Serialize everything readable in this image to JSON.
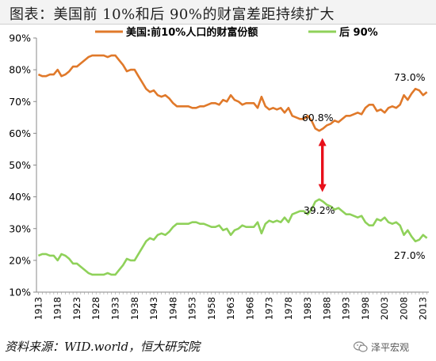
{
  "title": "图表：美国前 10%和后 90%的财富差距持续扩大",
  "source": "资料来源：WID.world，恒大研究院",
  "watermark": {
    "text": "泽平宏观",
    "icon": "wechat-icon"
  },
  "colors": {
    "top10": "#E0792A",
    "bottom90": "#8FD15A",
    "arrow": "#E8101A"
  },
  "chart_data": {
    "type": "line",
    "ylim": [
      0.1,
      0.9
    ],
    "yticks": [
      "10%",
      "20%",
      "30%",
      "40%",
      "50%",
      "60%",
      "70%",
      "80%",
      "90%"
    ],
    "xrange": [
      1913,
      2014
    ],
    "xticks": [
      "1913",
      "1918",
      "1923",
      "1928",
      "1933",
      "1938",
      "1943",
      "1948",
      "1953",
      "1958",
      "1963",
      "1968",
      "1973",
      "1978",
      "1983",
      "1988",
      "1993",
      "1998",
      "2003",
      "2008",
      "2013"
    ],
    "legend_position": "top",
    "grid": false,
    "series": [
      {
        "name": "美国:前10%人口的财富份额",
        "points": [
          [
            1913,
            0.785
          ],
          [
            1914,
            0.78
          ],
          [
            1915,
            0.78
          ],
          [
            1916,
            0.785
          ],
          [
            1917,
            0.785
          ],
          [
            1918,
            0.8
          ],
          [
            1919,
            0.78
          ],
          [
            1920,
            0.785
          ],
          [
            1921,
            0.795
          ],
          [
            1922,
            0.81
          ],
          [
            1923,
            0.81
          ],
          [
            1924,
            0.82
          ],
          [
            1925,
            0.83
          ],
          [
            1926,
            0.84
          ],
          [
            1927,
            0.845
          ],
          [
            1928,
            0.845
          ],
          [
            1929,
            0.845
          ],
          [
            1930,
            0.845
          ],
          [
            1931,
            0.84
          ],
          [
            1932,
            0.845
          ],
          [
            1933,
            0.845
          ],
          [
            1934,
            0.83
          ],
          [
            1935,
            0.815
          ],
          [
            1936,
            0.795
          ],
          [
            1937,
            0.8
          ],
          [
            1938,
            0.8
          ],
          [
            1939,
            0.78
          ],
          [
            1940,
            0.76
          ],
          [
            1941,
            0.74
          ],
          [
            1942,
            0.73
          ],
          [
            1943,
            0.735
          ],
          [
            1944,
            0.72
          ],
          [
            1945,
            0.715
          ],
          [
            1946,
            0.72
          ],
          [
            1947,
            0.71
          ],
          [
            1948,
            0.695
          ],
          [
            1949,
            0.685
          ],
          [
            1950,
            0.685
          ],
          [
            1951,
            0.685
          ],
          [
            1952,
            0.685
          ],
          [
            1953,
            0.68
          ],
          [
            1954,
            0.68
          ],
          [
            1955,
            0.685
          ],
          [
            1956,
            0.685
          ],
          [
            1957,
            0.69
          ],
          [
            1958,
            0.695
          ],
          [
            1959,
            0.695
          ],
          [
            1960,
            0.69
          ],
          [
            1961,
            0.705
          ],
          [
            1962,
            0.7
          ],
          [
            1963,
            0.72
          ],
          [
            1964,
            0.705
          ],
          [
            1965,
            0.7
          ],
          [
            1966,
            0.69
          ],
          [
            1967,
            0.695
          ],
          [
            1968,
            0.695
          ],
          [
            1969,
            0.695
          ],
          [
            1970,
            0.68
          ],
          [
            1971,
            0.715
          ],
          [
            1972,
            0.685
          ],
          [
            1973,
            0.675
          ],
          [
            1974,
            0.68
          ],
          [
            1975,
            0.675
          ],
          [
            1976,
            0.68
          ],
          [
            1977,
            0.665
          ],
          [
            1978,
            0.68
          ],
          [
            1979,
            0.655
          ],
          [
            1980,
            0.65
          ],
          [
            1981,
            0.645
          ],
          [
            1982,
            0.645
          ],
          [
            1983,
            0.655
          ],
          [
            1984,
            0.64
          ],
          [
            1985,
            0.615
          ],
          [
            1986,
            0.608
          ],
          [
            1987,
            0.615
          ],
          [
            1988,
            0.625
          ],
          [
            1989,
            0.63
          ],
          [
            1990,
            0.64
          ],
          [
            1991,
            0.635
          ],
          [
            1992,
            0.645
          ],
          [
            1993,
            0.655
          ],
          [
            1994,
            0.655
          ],
          [
            1995,
            0.66
          ],
          [
            1996,
            0.665
          ],
          [
            1997,
            0.66
          ],
          [
            1998,
            0.68
          ],
          [
            1999,
            0.69
          ],
          [
            2000,
            0.69
          ],
          [
            2001,
            0.67
          ],
          [
            2002,
            0.675
          ],
          [
            2003,
            0.665
          ],
          [
            2004,
            0.68
          ],
          [
            2005,
            0.685
          ],
          [
            2006,
            0.68
          ],
          [
            2007,
            0.69
          ],
          [
            2008,
            0.72
          ],
          [
            2009,
            0.705
          ],
          [
            2010,
            0.725
          ],
          [
            2011,
            0.74
          ],
          [
            2012,
            0.735
          ],
          [
            2013,
            0.72
          ],
          [
            2014,
            0.73
          ]
        ],
        "annotations": [
          {
            "x": 1986,
            "y": 0.608,
            "label": "60.8%"
          },
          {
            "x": 2014,
            "y": 0.73,
            "label": "73.0%"
          }
        ]
      },
      {
        "name": "后 90%",
        "points": [
          [
            1913,
            0.215
          ],
          [
            1914,
            0.22
          ],
          [
            1915,
            0.22
          ],
          [
            1916,
            0.215
          ],
          [
            1917,
            0.215
          ],
          [
            1918,
            0.2
          ],
          [
            1919,
            0.22
          ],
          [
            1920,
            0.215
          ],
          [
            1921,
            0.205
          ],
          [
            1922,
            0.19
          ],
          [
            1923,
            0.19
          ],
          [
            1924,
            0.18
          ],
          [
            1925,
            0.17
          ],
          [
            1926,
            0.16
          ],
          [
            1927,
            0.155
          ],
          [
            1928,
            0.155
          ],
          [
            1929,
            0.155
          ],
          [
            1930,
            0.155
          ],
          [
            1931,
            0.16
          ],
          [
            1932,
            0.155
          ],
          [
            1933,
            0.155
          ],
          [
            1934,
            0.17
          ],
          [
            1935,
            0.185
          ],
          [
            1936,
            0.205
          ],
          [
            1937,
            0.2
          ],
          [
            1938,
            0.2
          ],
          [
            1939,
            0.22
          ],
          [
            1940,
            0.24
          ],
          [
            1941,
            0.26
          ],
          [
            1942,
            0.27
          ],
          [
            1943,
            0.265
          ],
          [
            1944,
            0.28
          ],
          [
            1945,
            0.285
          ],
          [
            1946,
            0.28
          ],
          [
            1947,
            0.29
          ],
          [
            1948,
            0.305
          ],
          [
            1949,
            0.315
          ],
          [
            1950,
            0.315
          ],
          [
            1951,
            0.315
          ],
          [
            1952,
            0.315
          ],
          [
            1953,
            0.32
          ],
          [
            1954,
            0.32
          ],
          [
            1955,
            0.315
          ],
          [
            1956,
            0.315
          ],
          [
            1957,
            0.31
          ],
          [
            1958,
            0.305
          ],
          [
            1959,
            0.305
          ],
          [
            1960,
            0.31
          ],
          [
            1961,
            0.295
          ],
          [
            1962,
            0.3
          ],
          [
            1963,
            0.28
          ],
          [
            1964,
            0.295
          ],
          [
            1965,
            0.3
          ],
          [
            1966,
            0.31
          ],
          [
            1967,
            0.305
          ],
          [
            1968,
            0.305
          ],
          [
            1969,
            0.305
          ],
          [
            1970,
            0.32
          ],
          [
            1971,
            0.285
          ],
          [
            1972,
            0.315
          ],
          [
            1973,
            0.325
          ],
          [
            1974,
            0.32
          ],
          [
            1975,
            0.325
          ],
          [
            1976,
            0.32
          ],
          [
            1977,
            0.335
          ],
          [
            1978,
            0.32
          ],
          [
            1979,
            0.345
          ],
          [
            1980,
            0.35
          ],
          [
            1981,
            0.355
          ],
          [
            1982,
            0.355
          ],
          [
            1983,
            0.345
          ],
          [
            1984,
            0.36
          ],
          [
            1985,
            0.385
          ],
          [
            1986,
            0.392
          ],
          [
            1987,
            0.385
          ],
          [
            1988,
            0.375
          ],
          [
            1989,
            0.37
          ],
          [
            1990,
            0.36
          ],
          [
            1991,
            0.365
          ],
          [
            1992,
            0.355
          ],
          [
            1993,
            0.345
          ],
          [
            1994,
            0.345
          ],
          [
            1995,
            0.34
          ],
          [
            1996,
            0.335
          ],
          [
            1997,
            0.34
          ],
          [
            1998,
            0.32
          ],
          [
            1999,
            0.31
          ],
          [
            2000,
            0.31
          ],
          [
            2001,
            0.33
          ],
          [
            2002,
            0.325
          ],
          [
            2003,
            0.335
          ],
          [
            2004,
            0.32
          ],
          [
            2005,
            0.315
          ],
          [
            2006,
            0.32
          ],
          [
            2007,
            0.31
          ],
          [
            2008,
            0.28
          ],
          [
            2009,
            0.295
          ],
          [
            2010,
            0.275
          ],
          [
            2011,
            0.26
          ],
          [
            2012,
            0.265
          ],
          [
            2013,
            0.28
          ],
          [
            2014,
            0.27
          ]
        ],
        "annotations": [
          {
            "x": 1986,
            "y": 0.392,
            "label": "39.2%"
          },
          {
            "x": 2014,
            "y": 0.27,
            "label": "27.0%"
          }
        ]
      }
    ],
    "arrow": {
      "x": 1986,
      "from": 0.6,
      "to": 0.4
    }
  }
}
